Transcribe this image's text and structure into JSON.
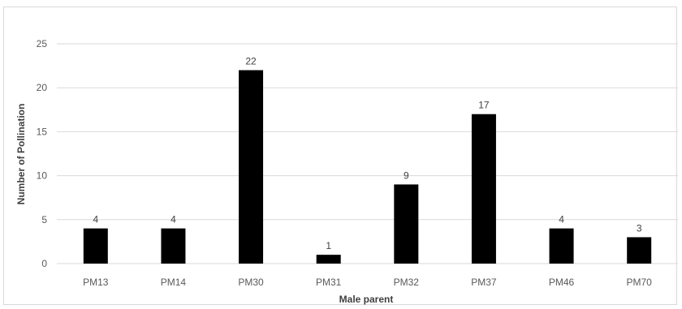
{
  "chart_data": {
    "type": "bar",
    "title": "",
    "xlabel": "Male parent",
    "ylabel": "Number of Pollination",
    "categories": [
      "PM13",
      "PM14",
      "PM30",
      "PM31",
      "PM32",
      "PM37",
      "PM46",
      "PM70"
    ],
    "values": [
      4,
      4,
      22,
      1,
      9,
      17,
      4,
      3
    ],
    "ylim": [
      0,
      25
    ],
    "yticks": [
      "0",
      "5",
      "10",
      "15",
      "20",
      "25"
    ],
    "grid": true,
    "bar_color": "#000000",
    "grid_color": "#d9d9d9",
    "data_labels": true
  }
}
